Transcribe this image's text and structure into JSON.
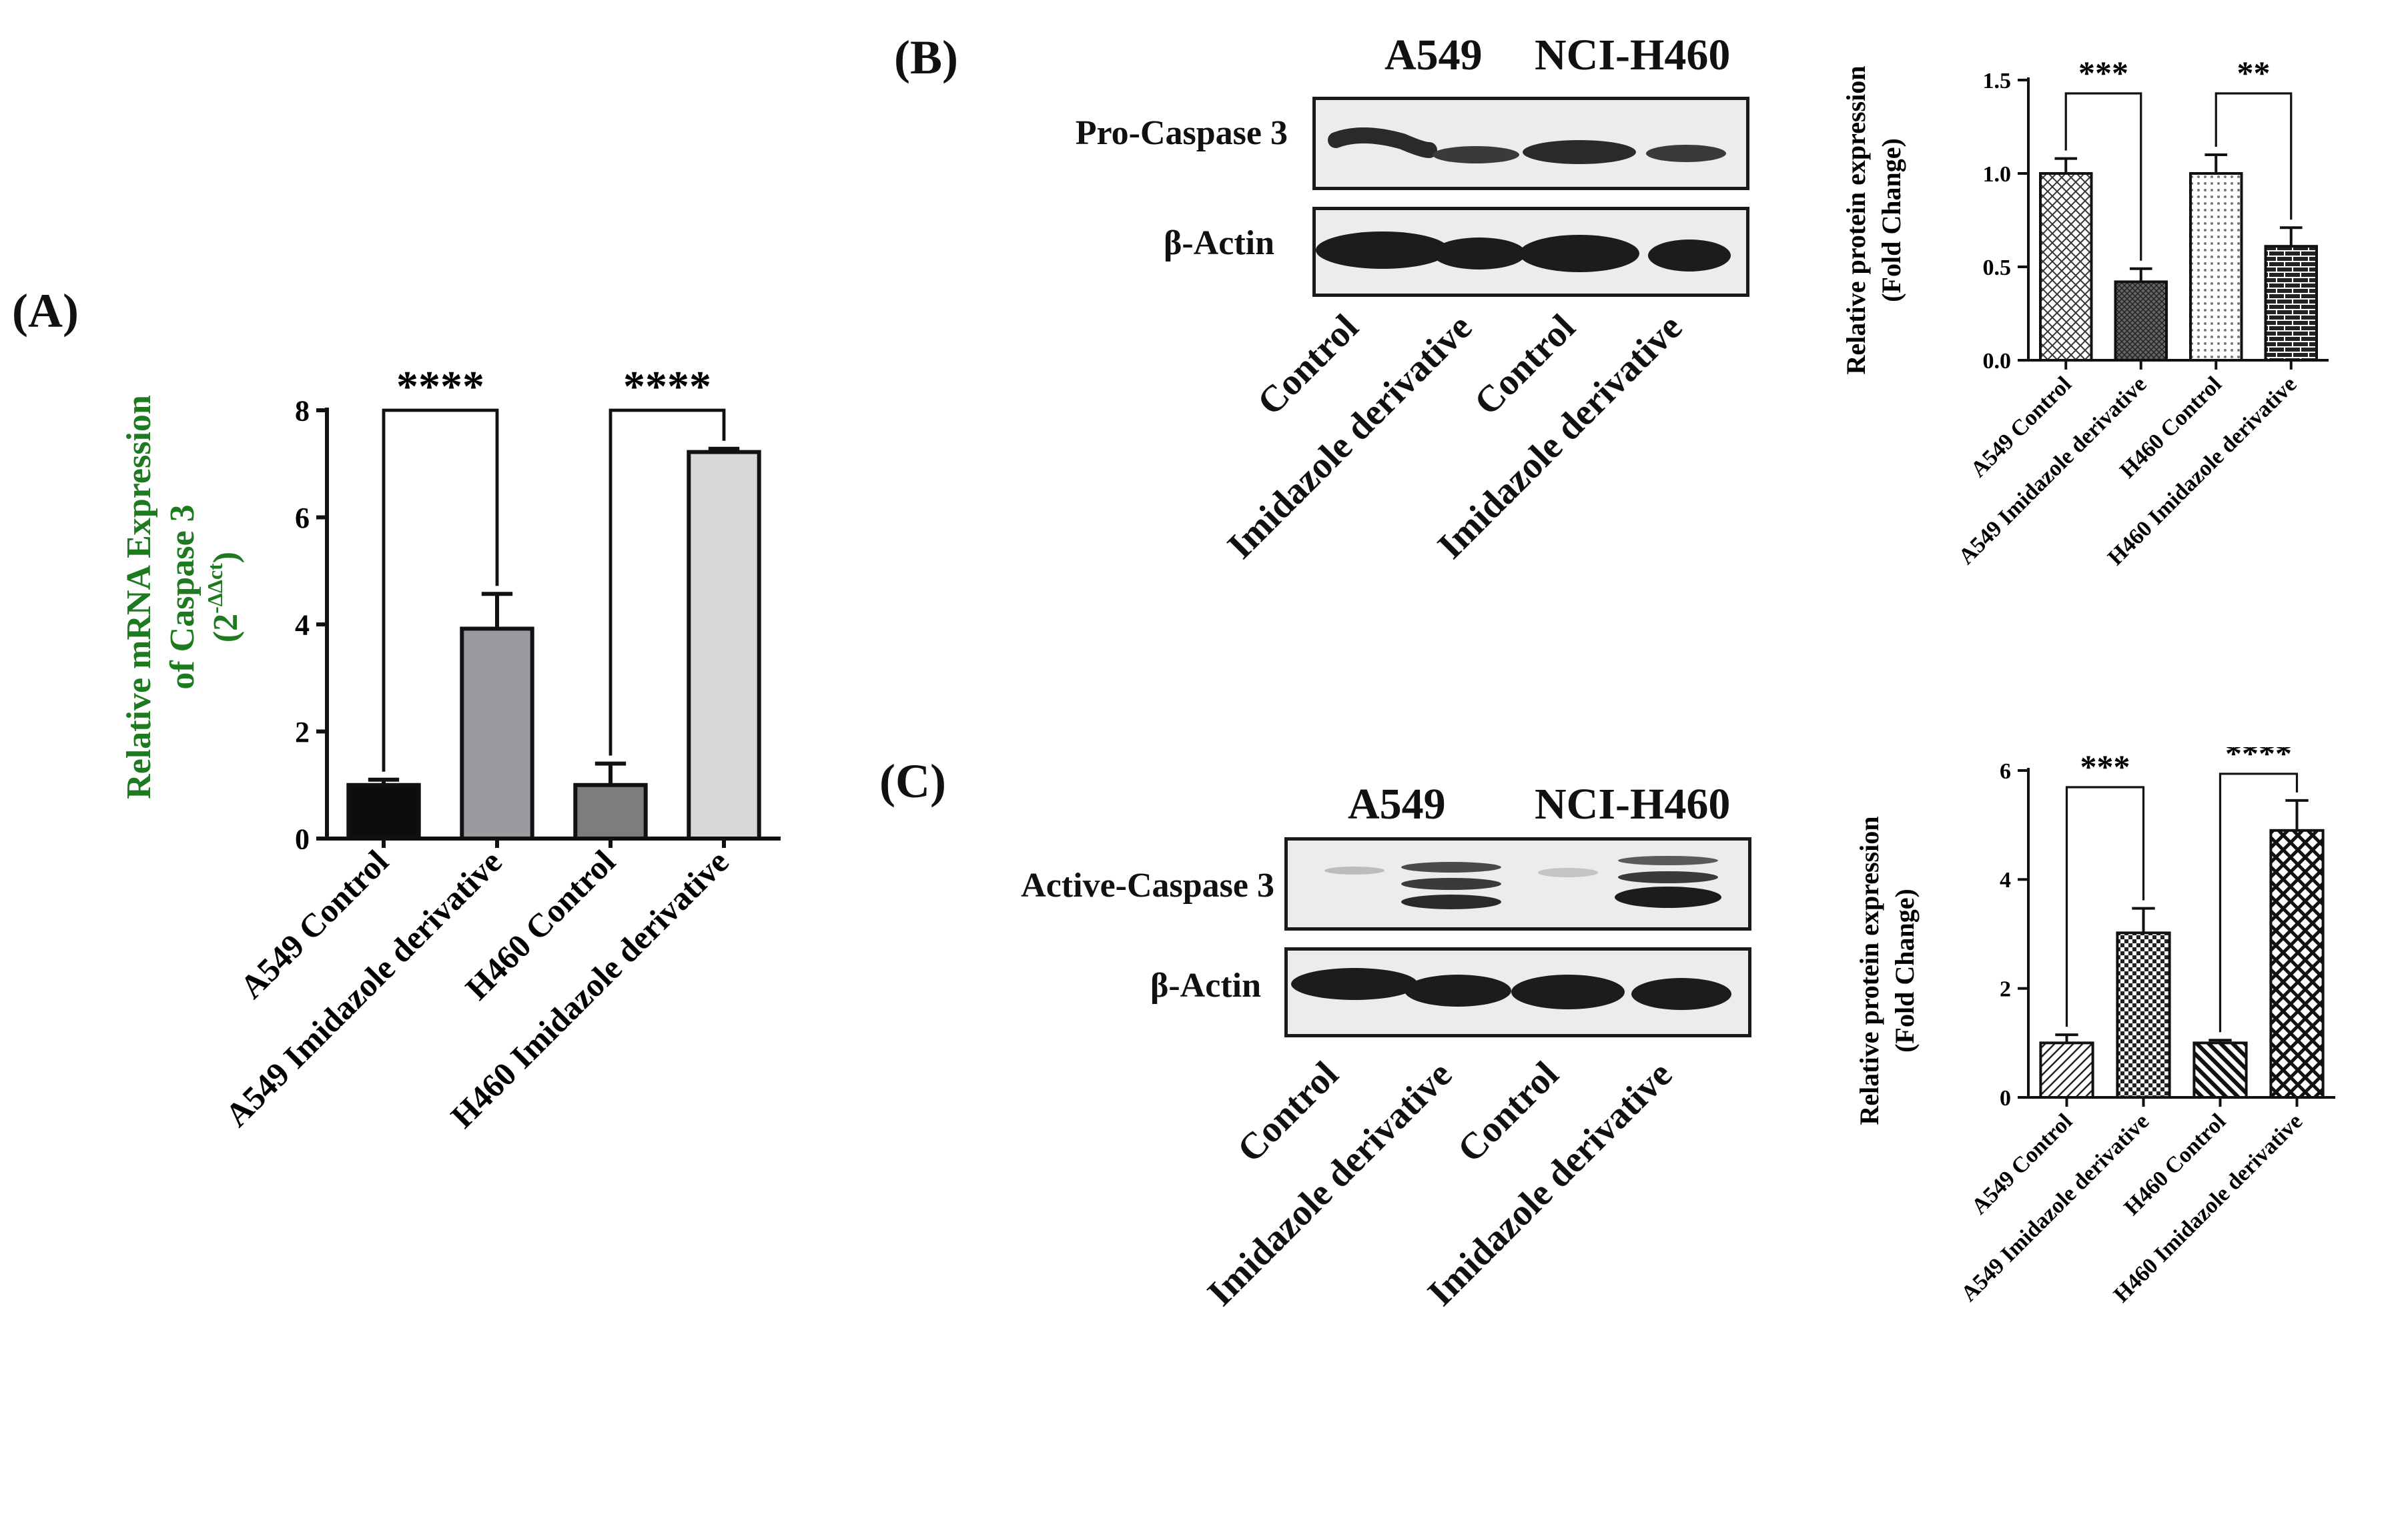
{
  "colors": {
    "ylabel_A": "#1e7a1e",
    "axis": "#111111"
  },
  "panelA": {
    "label": "(A)",
    "chart_data": {
      "type": "bar",
      "categories": [
        "A549 Control",
        "A549 Imidazole derivative",
        "H460 Control",
        "H460 Imidazole derivative"
      ],
      "values": [
        1.0,
        3.92,
        1.0,
        7.22
      ],
      "errors": [
        0.1,
        0.65,
        0.4,
        0.06
      ],
      "bar_colors": [
        "#0d0d0d",
        "#9a9aa0",
        "#7d7d80",
        "#d8d8d8"
      ],
      "ylabel_lines": [
        "Relative mRNA Expression",
        "of Caspase 3"
      ],
      "ylabel_formula": {
        "base": "(2",
        "exponent": "-ΔΔct",
        "close": ")"
      },
      "ylim": [
        0,
        8
      ],
      "yticks": [
        "0",
        "2",
        "4",
        "6",
        "8"
      ],
      "significance": [
        {
          "from": 0,
          "to": 1,
          "label": "****"
        },
        {
          "from": 2,
          "to": 3,
          "label": "****"
        }
      ]
    }
  },
  "panelB": {
    "label": "(B)",
    "blot": {
      "groups": [
        "A549",
        "NCI-H460"
      ],
      "bands": [
        "Pro-Caspase 3",
        "β-Actin"
      ],
      "lanes": [
        "Control",
        "Imidazole derivative",
        "Control",
        "Imidazole derivative"
      ]
    },
    "chart_data": {
      "type": "bar",
      "categories": [
        "A549 Control",
        "A549 Imidazole derivative",
        "H460 Control",
        "H460 Imidazole derivative"
      ],
      "values": [
        1.0,
        0.42,
        1.0,
        0.61
      ],
      "errors": [
        0.08,
        0.07,
        0.1,
        0.1
      ],
      "patterns": [
        "diagonal-grid",
        "dense-grid",
        "dots",
        "brick"
      ],
      "ylabel_lines": [
        "Relative protein expression",
        "(Fold Change)"
      ],
      "ylim": [
        0,
        1.5
      ],
      "yticks": [
        "0.0",
        "0.5",
        "1.0",
        "1.5"
      ],
      "significance": [
        {
          "from": 0,
          "to": 1,
          "label": "***"
        },
        {
          "from": 2,
          "to": 3,
          "label": "**"
        }
      ]
    }
  },
  "panelC": {
    "label": "(C)",
    "blot": {
      "groups": [
        "A549",
        "NCI-H460"
      ],
      "bands": [
        "Active-Caspase 3",
        "β-Actin"
      ],
      "lanes": [
        "Control",
        "Imidazole derivative",
        "Control",
        "Imidazole derivative"
      ]
    },
    "chart_data": {
      "type": "bar",
      "categories": [
        "A549 Control",
        "A549 Imidazole derivative",
        "H460 Control",
        "H460 Imidazole derivative"
      ],
      "values": [
        1.0,
        3.02,
        1.0,
        4.9
      ],
      "errors": [
        0.15,
        0.45,
        0.05,
        0.55
      ],
      "patterns": [
        "diag-sparse",
        "checker",
        "diag-bold",
        "crosshatch"
      ],
      "ylabel_lines": [
        "Relative protein expression",
        "(Fold Change)"
      ],
      "ylim": [
        0,
        6
      ],
      "yticks": [
        "0",
        "2",
        "4",
        "6"
      ],
      "significance": [
        {
          "from": 0,
          "to": 1,
          "label": "***"
        },
        {
          "from": 2,
          "to": 3,
          "label": "****"
        }
      ]
    }
  }
}
